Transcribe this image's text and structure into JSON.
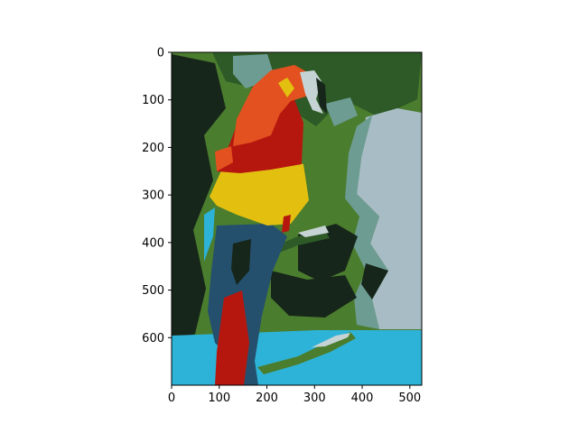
{
  "chart_data": {
    "type": "image",
    "subject": "posterized-parrot",
    "x_ticks": [
      0,
      100,
      200,
      300,
      400,
      500
    ],
    "y_ticks": [
      0,
      100,
      200,
      300,
      400,
      500,
      600
    ],
    "xlim": [
      0,
      525
    ],
    "ylim": [
      700,
      0
    ],
    "palette": {
      "dark": "#17261a",
      "forest": "#2d5a27",
      "leaf": "#4b7d2e",
      "sage": "#6d9c92",
      "pale": "#a7bcc4",
      "sky": "#2eb3d8",
      "navy": "#24506e",
      "red": "#b5170f",
      "orange": "#e2511f",
      "yellow": "#e3c010",
      "white": "#c6d3d4"
    }
  }
}
